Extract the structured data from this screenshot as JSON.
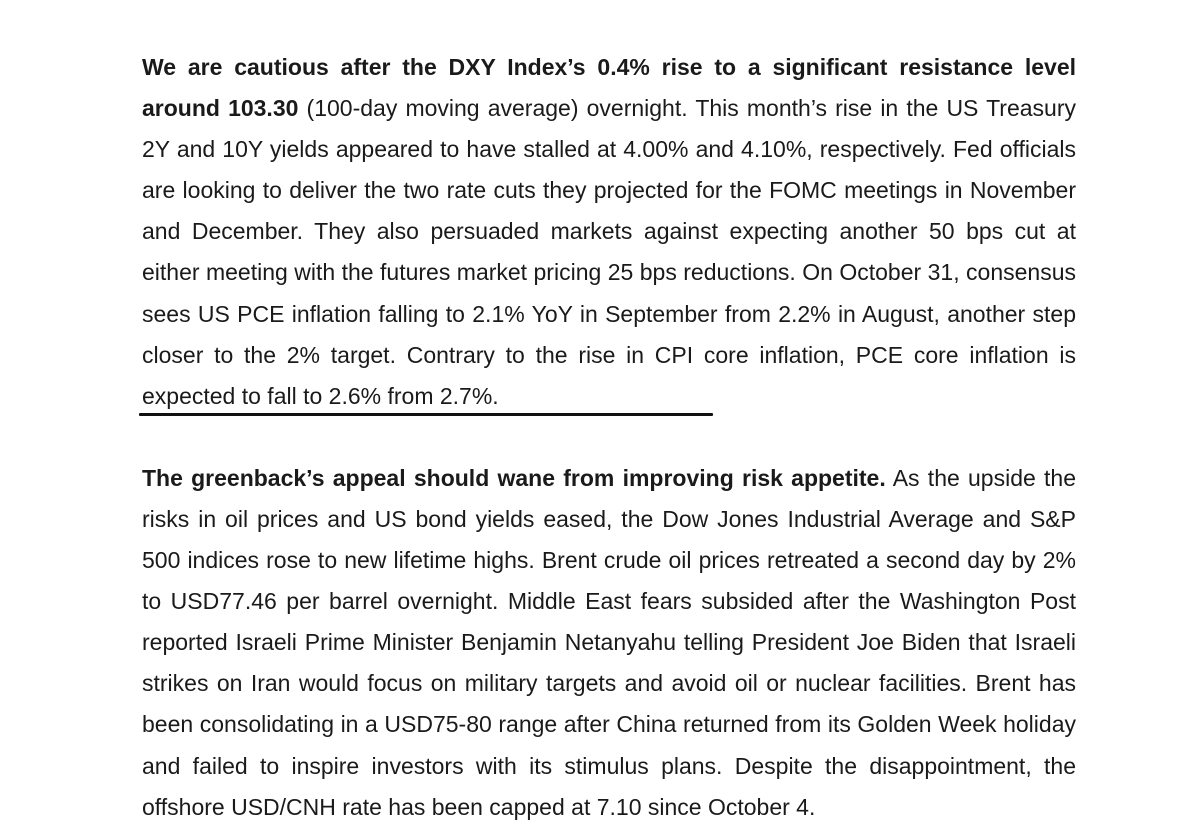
{
  "paragraphs": [
    {
      "lead": "We are cautious after the DXY Index’s 0.4% rise to a significant resistance level around 103.30",
      "body": " (100-day moving average) overnight. This month’s rise in the US Treasury 2Y and 10Y yields appeared to have stalled at 4.00% and 4.10%, respectively. Fed officials are looking to deliver the two rate cuts they projected for the FOMC meetings in November and December. They also persuaded markets against expecting another 50 bps cut at either meeting with the futures market pricing 25 bps reductions. On October 31, consensus sees US PCE inflation falling to 2.1% YoY in September from 2.2% in August, another step closer to the 2% target. Contrary to the rise in CPI core inflation, PCE core inflation is expected to fall to 2.6% from 2.7%."
    },
    {
      "lead": "The greenback’s appeal should wane from improving risk appetite.",
      "body": " As the upside the risks in oil prices and US bond yields eased, the Dow Jones Industrial Average and S&P 500 indices rose to new lifetime highs. Brent crude oil prices retreated a second day by 2% to USD77.46 per barrel overnight. Middle East fears subsided after the Washington Post reported Israeli Prime Minister Benjamin Netanyahu telling President Joe Biden that Israeli strikes on Iran would focus on military targets and avoid oil or nuclear facilities. Brent has been consolidating in a USD75-80 range after China returned from its Golden Week holiday and failed to inspire investors with its stimulus plans. Despite the disappointment, the offshore USD/CNH rate has been capped at 7.10 since October 4."
    }
  ]
}
